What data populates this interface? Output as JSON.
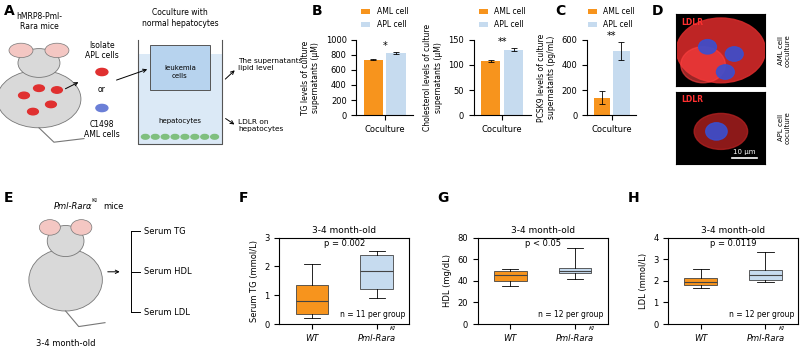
{
  "chart_data": [
    {
      "type": "bar",
      "panel": "B",
      "categories": [
        "Coculture"
      ],
      "series": [
        {
          "name": "AML cell",
          "color": "#F7941D",
          "values": [
            735
          ],
          "errors": [
            5
          ]
        },
        {
          "name": "APL cell",
          "color": "#C6DBEF",
          "values": [
            820
          ],
          "errors": [
            12
          ]
        }
      ],
      "ylabel": "TG levels of culture\nsupernatants (μM)",
      "ylim": [
        0,
        1000
      ],
      "yticks": [
        0,
        200,
        400,
        600,
        800,
        1000
      ],
      "legend": "lower center",
      "annotations": [
        "*"
      ]
    },
    {
      "type": "bar",
      "categories": [
        "Coculture"
      ],
      "series": [
        {
          "name": "AML cell",
          "color": "#F7941D",
          "values": [
            108
          ],
          "errors": [
            2
          ]
        },
        {
          "name": "APL cell",
          "color": "#C6DBEF",
          "values": [
            130
          ],
          "errors": [
            3
          ]
        }
      ],
      "ylabel": "Cholesterol levels of culture\nsupernatants (μM)",
      "ylim": [
        0,
        150
      ],
      "yticks": [
        0,
        50,
        100,
        150
      ],
      "legend": "lower center",
      "annotations": [
        "**"
      ]
    },
    {
      "type": "bar",
      "panel": "C",
      "categories": [
        "Coculture"
      ],
      "series": [
        {
          "name": "AML cell",
          "color": "#F7941D",
          "values": [
            140
          ],
          "errors": [
            50
          ]
        },
        {
          "name": "APL cell",
          "color": "#C6DBEF",
          "values": [
            510
          ],
          "errors": [
            70
          ]
        }
      ],
      "ylabel": "PCSK9 levels of culture\nsupernatants (pg/mL)",
      "ylim": [
        0,
        600
      ],
      "yticks": [
        0,
        200,
        400,
        600
      ],
      "legend": "lower center",
      "annotations": [
        "**"
      ]
    },
    {
      "type": "box",
      "panel": "F",
      "title": "3-4 month-old",
      "categories": [
        "WT",
        "Pml-Rara"
      ],
      "boxes": [
        {
          "whislo": 0.2,
          "q1": 0.35,
          "med": 0.8,
          "q3": 1.35,
          "whishi": 2.1
        },
        {
          "whislo": 0.9,
          "q1": 1.2,
          "med": 1.85,
          "q3": 2.4,
          "whishi": 2.55
        }
      ],
      "colors": [
        "#F7941D",
        "#C6DBEF"
      ],
      "ylabel": "Serum TG (mmol/L)",
      "ylim": [
        0,
        3
      ],
      "yticks": [
        0,
        1,
        2,
        3
      ],
      "annotations": {
        "p": "p = 0.002",
        "n": "n = 11 per group",
        "superscript": "KI"
      }
    },
    {
      "type": "box",
      "panel": "G",
      "title": "3-4 month-old",
      "categories": [
        "WT",
        "Pml-Rara"
      ],
      "boxes": [
        {
          "whislo": 35,
          "q1": 40,
          "med": 45,
          "q3": 49,
          "whishi": 51
        },
        {
          "whislo": 42,
          "q1": 47,
          "med": 49,
          "q3": 52,
          "whishi": 70
        }
      ],
      "colors": [
        "#F7941D",
        "#C6DBEF"
      ],
      "ylabel": "HDL (mg/dL)",
      "ylim": [
        0,
        80
      ],
      "yticks": [
        0,
        20,
        40,
        60,
        80
      ],
      "annotations": {
        "p": "p < 0.05",
        "n": "n = 12 per group",
        "superscript": "KI"
      }
    },
    {
      "type": "box",
      "panel": "H",
      "title": "3-4 month-old",
      "categories": [
        "WT",
        "Pml-Rara"
      ],
      "boxes": [
        {
          "whislo": 1.65,
          "q1": 1.8,
          "med": 1.95,
          "q3": 2.15,
          "whishi": 2.55
        },
        {
          "whislo": 1.95,
          "q1": 2.05,
          "med": 2.25,
          "q3": 2.5,
          "whishi": 3.35
        }
      ],
      "colors": [
        "#F7941D",
        "#C6DBEF"
      ],
      "ylabel": "LDL (mmol/L)",
      "ylim": [
        0,
        4
      ],
      "yticks": [
        0,
        1,
        2,
        3,
        4
      ],
      "annotations": {
        "p": "p = 0.0119",
        "n": "n = 12 per group",
        "superscript": "KI"
      }
    }
  ],
  "diagrams": {
    "A": {
      "panel": "A",
      "mouse": "hMRP8-Pml-\nRara mice",
      "isolate": "Isolate\nAPL cells",
      "or": "or",
      "aml": "C1498\nAML cells",
      "coculture": "Coculture with\nnormal hepatocytes",
      "insert": "leukemia\ncells",
      "bottom": "hepatocytes",
      "out1": "The supernatants\nlipid level",
      "out2": "LDLR on\nhepatocytes"
    },
    "D": {
      "panel": "D",
      "stain": "LDLR",
      "images": [
        "AML cell\ncoculture",
        "APL cell\ncoculture"
      ],
      "scale_bar": "10 μm"
    },
    "E": {
      "panel": "E",
      "title": "Pml-Rarα",
      "superscript": "KI",
      "title_suffix": "mice",
      "age": "3-4 month-old",
      "items": [
        "Serum TG",
        "Serum HDL",
        "Serum LDL"
      ]
    }
  }
}
